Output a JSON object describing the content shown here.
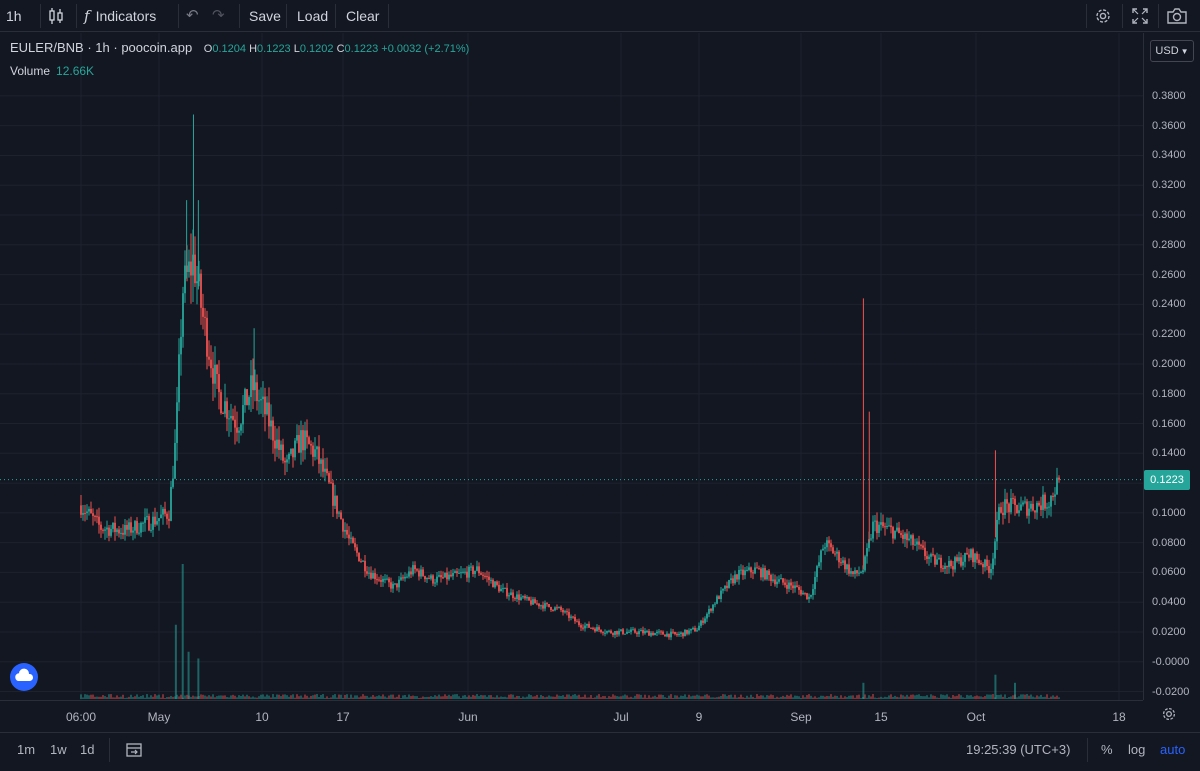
{
  "toolbar": {
    "interval": "1h",
    "indicators_label": "Indicators",
    "save_label": "Save",
    "load_label": "Load",
    "clear_label": "Clear"
  },
  "legend": {
    "symbol": "EULER/BNB",
    "interval": "1h",
    "source": "poocoin.app",
    "o_label": "O",
    "o_value": "0.1204",
    "h_label": "H",
    "h_value": "0.1223",
    "l_label": "L",
    "l_value": "0.1202",
    "c_label": "C",
    "c_value": "0.1223",
    "change": "+0.0032 (+2.71%)",
    "volume_label": "Volume",
    "volume_value": "12.66K"
  },
  "currency": "USD",
  "last_price_label": "0.1223",
  "bottom": {
    "ranges": [
      "1m",
      "1w",
      "1d"
    ],
    "time": "19:25:39 (UTC+3)",
    "percent": "%",
    "log": "log",
    "auto": "auto"
  },
  "colors": {
    "background": "#131722",
    "up": "#26a69a",
    "down": "#ef5350",
    "grid": "#1e222d"
  },
  "chart_data": {
    "type": "candlestick",
    "title": "",
    "pair": "EULER/BNB",
    "y_ticks": [
      -0.02,
      0.0,
      0.02,
      0.04,
      0.06,
      0.08,
      0.1,
      0.12,
      0.14,
      0.16,
      0.18,
      0.2,
      0.22,
      0.24,
      0.26,
      0.28,
      0.3,
      0.32,
      0.34,
      0.36,
      0.38
    ],
    "y_tick_labels": [
      "-0.0200",
      "-0.0000",
      "0.0200",
      "0.0400",
      "0.0600",
      "0.0800",
      "0.1000",
      "0.1200",
      "0.1400",
      "0.1600",
      "0.1800",
      "0.2000",
      "0.2200",
      "0.2400",
      "0.2600",
      "0.2800",
      "0.3000",
      "0.3200",
      "0.3400",
      "0.3600",
      "0.3800"
    ],
    "ylim": [
      -0.025,
      0.39
    ],
    "x_labels": [
      "06:00",
      "May",
      "10",
      "17",
      "Jun",
      "Jul",
      "9",
      "Sep",
      "15",
      "Oct",
      "18"
    ],
    "last_price": 0.1223,
    "price_path": [
      [
        0.0,
        0.105
      ],
      [
        0.02,
        0.09
      ],
      [
        0.045,
        0.088
      ],
      [
        0.075,
        0.095
      ],
      [
        0.09,
        0.1
      ],
      [
        0.097,
        0.15
      ],
      [
        0.104,
        0.25
      ],
      [
        0.115,
        0.27
      ],
      [
        0.125,
        0.23
      ],
      [
        0.14,
        0.18
      ],
      [
        0.16,
        0.16
      ],
      [
        0.175,
        0.185
      ],
      [
        0.19,
        0.165
      ],
      [
        0.21,
        0.13
      ],
      [
        0.225,
        0.15
      ],
      [
        0.24,
        0.14
      ],
      [
        0.255,
        0.115
      ],
      [
        0.275,
        0.08
      ],
      [
        0.295,
        0.06
      ],
      [
        0.32,
        0.05
      ],
      [
        0.34,
        0.062
      ],
      [
        0.36,
        0.055
      ],
      [
        0.385,
        0.058
      ],
      [
        0.405,
        0.062
      ],
      [
        0.43,
        0.048
      ],
      [
        0.46,
        0.04
      ],
      [
        0.49,
        0.035
      ],
      [
        0.51,
        0.025
      ],
      [
        0.54,
        0.02
      ],
      [
        0.57,
        0.02
      ],
      [
        0.61,
        0.018
      ],
      [
        0.63,
        0.022
      ],
      [
        0.65,
        0.042
      ],
      [
        0.67,
        0.058
      ],
      [
        0.69,
        0.062
      ],
      [
        0.71,
        0.055
      ],
      [
        0.73,
        0.05
      ],
      [
        0.745,
        0.043
      ],
      [
        0.76,
        0.08
      ],
      [
        0.775,
        0.07
      ],
      [
        0.79,
        0.058
      ],
      [
        0.8,
        0.062
      ],
      [
        0.81,
        0.092
      ],
      [
        0.83,
        0.088
      ],
      [
        0.85,
        0.08
      ],
      [
        0.87,
        0.068
      ],
      [
        0.89,
        0.065
      ],
      [
        0.91,
        0.072
      ],
      [
        0.93,
        0.062
      ],
      [
        0.94,
        0.105
      ],
      [
        0.96,
        0.103
      ],
      [
        0.975,
        0.105
      ],
      [
        0.99,
        0.108
      ],
      [
        1.0,
        0.1223
      ]
    ],
    "spikes": [
      {
        "t": 0.115,
        "high": 0.3675
      },
      {
        "t": 0.12,
        "high": 0.31
      },
      {
        "t": 0.108,
        "high": 0.31
      },
      {
        "t": 0.177,
        "high": 0.224
      },
      {
        "t": 0.8,
        "high": 0.244
      },
      {
        "t": 0.806,
        "high": 0.168
      },
      {
        "t": 0.935,
        "high": 0.142
      }
    ],
    "volume_ylim": [
      0,
      1
    ],
    "volume_spikes": [
      {
        "t": 0.097,
        "value": 0.55
      },
      {
        "t": 0.104,
        "value": 1.0
      },
      {
        "t": 0.11,
        "value": 0.35
      },
      {
        "t": 0.12,
        "value": 0.3
      },
      {
        "t": 0.8,
        "value": 0.12
      },
      {
        "t": 0.935,
        "value": 0.18
      },
      {
        "t": 0.955,
        "value": 0.12
      }
    ]
  }
}
